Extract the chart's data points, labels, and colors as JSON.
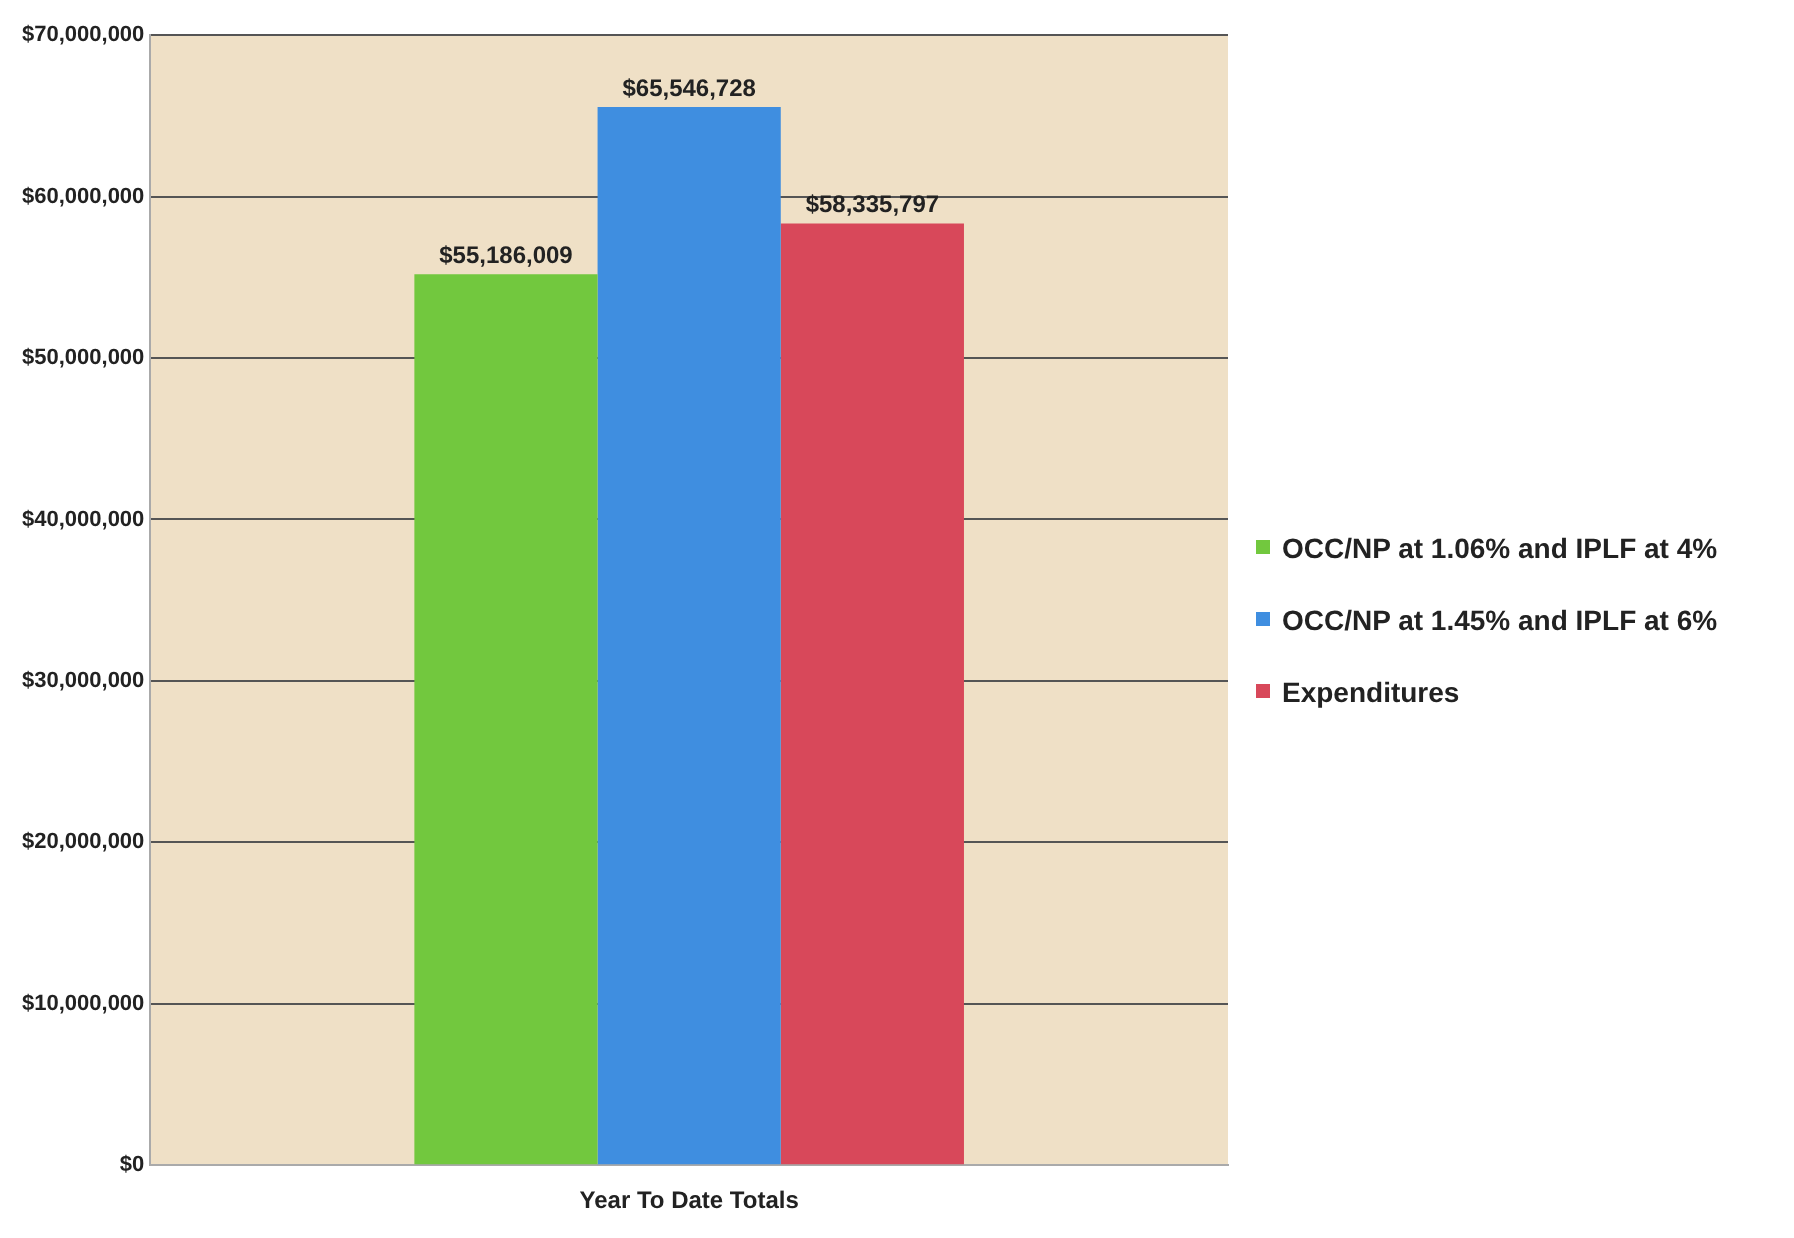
{
  "chart_data": {
    "type": "bar",
    "categories": [
      "Year To Date Totals"
    ],
    "series": [
      {
        "name": "OCC/NP at 1.06% and IPLF at 4%",
        "color": "#72c83e",
        "values": [
          55186009
        ],
        "value_labels": [
          "$55,186,009"
        ]
      },
      {
        "name": "OCC/NP at 1.45% and IPLF at 6%",
        "color": "#3f8ee0",
        "values": [
          65546728
        ],
        "value_labels": [
          "$65,546,728"
        ]
      },
      {
        "name": "Expenditures",
        "color": "#d8485a",
        "values": [
          58335797
        ],
        "value_labels": [
          "$58,335,797"
        ]
      }
    ],
    "ylim": [
      0,
      70000000
    ],
    "yticks": [
      {
        "value": 0,
        "label": "$0"
      },
      {
        "value": 10000000,
        "label": "$10,000,000"
      },
      {
        "value": 20000000,
        "label": "$20,000,000"
      },
      {
        "value": 30000000,
        "label": "$30,000,000"
      },
      {
        "value": 40000000,
        "label": "$40,000,000"
      },
      {
        "value": 50000000,
        "label": "$50,000,000"
      },
      {
        "value": 60000000,
        "label": "$60,000,000"
      },
      {
        "value": 70000000,
        "label": "$70,000,000"
      }
    ],
    "grid": "y",
    "legend": "right"
  }
}
